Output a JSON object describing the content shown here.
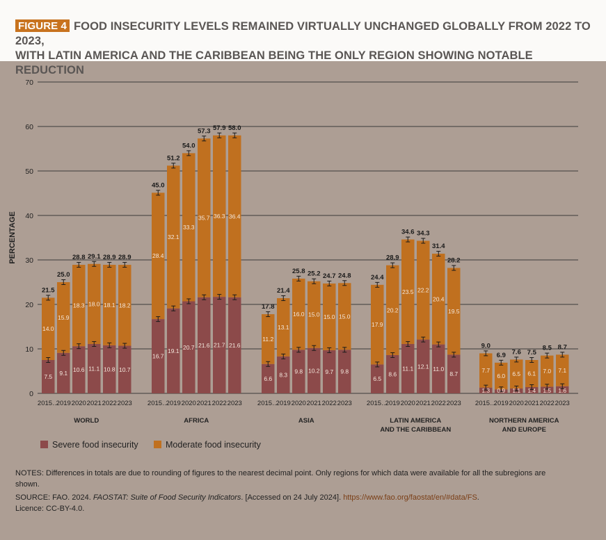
{
  "figure_label": "FIGURE 4",
  "title_line1": "FOOD INSECURITY LEVELS REMAINED VIRTUALLY UNCHANGED GLOBALLY FROM 2022 TO 2023,",
  "title_line2": "WITH LATIN AMERICA AND THE CARIBBEAN BEING THE ONLY REGION SHOWING NOTABLE REDUCTION",
  "colors": {
    "severe": "#8c4a4a",
    "moderate": "#c0701f",
    "accent": "#c8731f",
    "gridline": "#3a3a3a",
    "background": "#ad9e94"
  },
  "chart_data": {
    "type": "bar",
    "stacked": true,
    "ylabel": "PERCENTAGE",
    "ylim": [
      0,
      70
    ],
    "yticks": [
      0,
      10,
      20,
      30,
      40,
      50,
      60,
      70
    ],
    "grid": true,
    "legend_position": "bottom-left",
    "series": [
      {
        "name": "Severe food insecurity",
        "key": "severe"
      },
      {
        "name": "Moderate food insecurity",
        "key": "moderate"
      }
    ],
    "groups": [
      {
        "label_line1": "WORLD",
        "label_line2": "",
        "years": [
          "2015…",
          "2019",
          "2020",
          "2021",
          "2022",
          "2023"
        ],
        "severe": [
          7.5,
          9.1,
          10.6,
          11.1,
          10.8,
          10.7
        ],
        "moderate": [
          14.0,
          15.9,
          18.3,
          18.0,
          18.1,
          18.2
        ],
        "totals": [
          "21.5",
          "25.0",
          "28.8",
          "29.1",
          "28.9",
          "28.9"
        ]
      },
      {
        "label_line1": "AFRICA",
        "label_line2": "",
        "years": [
          "2015…",
          "2019",
          "2020",
          "2021",
          "2022",
          "2023"
        ],
        "severe": [
          16.7,
          19.1,
          20.7,
          21.6,
          21.7,
          21.6
        ],
        "moderate": [
          28.4,
          32.1,
          33.3,
          35.7,
          36.3,
          36.4
        ],
        "totals": [
          "45.0",
          "51.2",
          "54.0",
          "57.3",
          "57.9",
          "58.0"
        ]
      },
      {
        "label_line1": "ASIA",
        "label_line2": "",
        "years": [
          "2015…",
          "2019",
          "2020",
          "2021",
          "2022",
          "2023"
        ],
        "severe": [
          6.6,
          8.3,
          9.8,
          10.2,
          9.7,
          9.8
        ],
        "moderate": [
          11.2,
          13.1,
          16.0,
          15.0,
          15.0,
          15.0
        ],
        "totals": [
          "17.8",
          "21.4",
          "25.8",
          "25.2",
          "24.7",
          "24.8"
        ]
      },
      {
        "label_line1": "LATIN AMERICA",
        "label_line2": "AND THE CARIBBEAN",
        "years": [
          "2015…",
          "2019",
          "2020",
          "2021",
          "2022",
          "2023"
        ],
        "severe": [
          6.5,
          8.6,
          11.1,
          12.1,
          11.0,
          8.7
        ],
        "moderate": [
          17.9,
          20.2,
          23.5,
          22.2,
          20.4,
          19.5
        ],
        "totals": [
          "24.4",
          "28.9",
          "34.6",
          "34.3",
          "31.4",
          "28.2"
        ]
      },
      {
        "label_line1": "NORTHERN AMERICA",
        "label_line2": "AND EUROPE",
        "years": [
          "2015…",
          "2019",
          "2020",
          "2021",
          "2022",
          "2023"
        ],
        "severe": [
          1.3,
          0.9,
          1.1,
          1.4,
          1.5,
          1.6
        ],
        "moderate": [
          7.7,
          6.0,
          6.5,
          6.1,
          7.0,
          7.1
        ],
        "totals": [
          "9.0",
          "6.9",
          "7.6",
          "7.5",
          "8.5",
          "8.7"
        ]
      }
    ]
  },
  "notes": "NOTES: Differences in totals are due to rounding of figures to the nearest decimal point. Only regions for which data were available for all the subregions are shown.",
  "source_prefix": "SOURCE: FAO. 2024. ",
  "source_title": "FAOSTAT: Suite of Food Security Indicators",
  "source_accessed": ". [Accessed on 24 July 2024]. ",
  "source_url": "https://www.fao.org/faostat/en/#data/FS",
  "source_end": ".",
  "licence": "Licence: CC-BY-4.0."
}
